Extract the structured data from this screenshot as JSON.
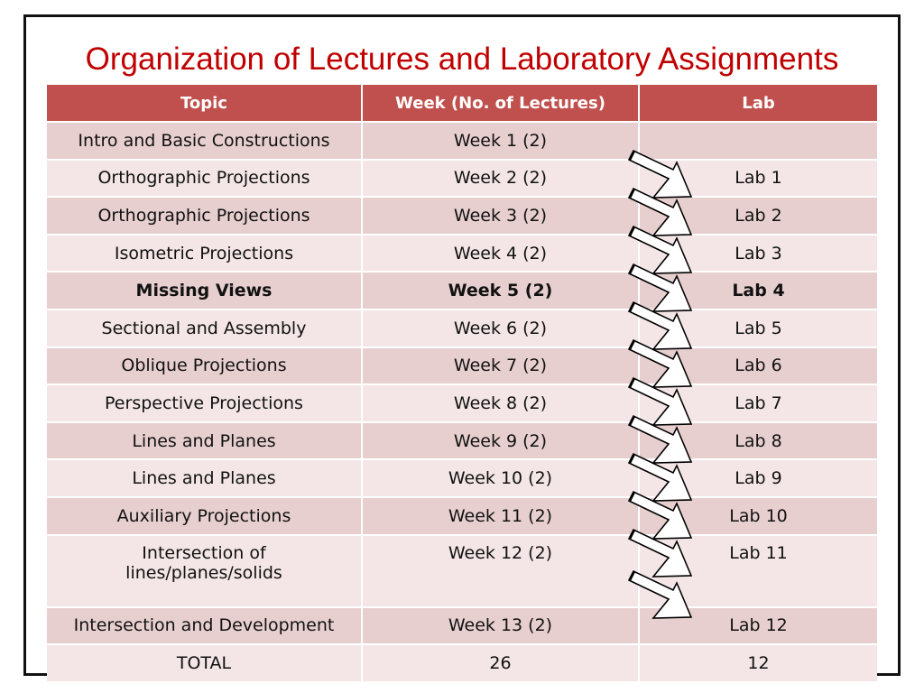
{
  "title": "Organization of Lectures and Laboratory Assignments",
  "table": {
    "headers": [
      "Topic",
      "Week (No. of Lectures)",
      "Lab"
    ],
    "rows": [
      {
        "topic": "Intro and Basic Constructions",
        "week": "Week 1 (2)",
        "lab": "",
        "bold": false
      },
      {
        "topic": "Orthographic Projections",
        "week": "Week 2 (2)",
        "lab": "Lab 1",
        "bold": false
      },
      {
        "topic": "Orthographic Projections",
        "week": "Week 3 (2)",
        "lab": "Lab 2",
        "bold": false
      },
      {
        "topic": "Isometric Projections",
        "week": "Week 4 (2)",
        "lab": "Lab 3",
        "bold": false
      },
      {
        "topic": "Missing Views",
        "week": "Week 5 (2)",
        "lab": "Lab 4",
        "bold": true
      },
      {
        "topic": "Sectional and Assembly",
        "week": "Week 6 (2)",
        "lab": "Lab 5",
        "bold": false
      },
      {
        "topic": "Oblique Projections",
        "week": "Week 7 (2)",
        "lab": "Lab 6",
        "bold": false
      },
      {
        "topic": "Perspective Projections",
        "week": "Week 8 (2)",
        "lab": "Lab 7",
        "bold": false
      },
      {
        "topic": "Lines and Planes",
        "week": "Week 9 (2)",
        "lab": "Lab 8",
        "bold": false
      },
      {
        "topic": "Lines and Planes",
        "week": "Week 10 (2)",
        "lab": "Lab 9",
        "bold": false
      },
      {
        "topic": "Auxiliary Projections",
        "week": "Week 11 (2)",
        "lab": "Lab 10",
        "bold": false
      },
      {
        "topic": "Intersection of lines/planes/solids",
        "week": "Week 12 (2)",
        "lab": "Lab 11",
        "bold": false
      },
      {
        "topic": "Intersection and Development",
        "week": "Week 13 (2)",
        "lab": "Lab 12",
        "bold": false
      }
    ],
    "total": {
      "label": "TOTAL",
      "lectures": "26",
      "labs": "12"
    }
  },
  "colors": {
    "title": "#c00000",
    "header_bg": "#c0504d",
    "row_dark": "#e8cfcf",
    "row_light": "#f4e6e6"
  },
  "icons": {
    "week_to_lab": "arrow-right-icon"
  }
}
